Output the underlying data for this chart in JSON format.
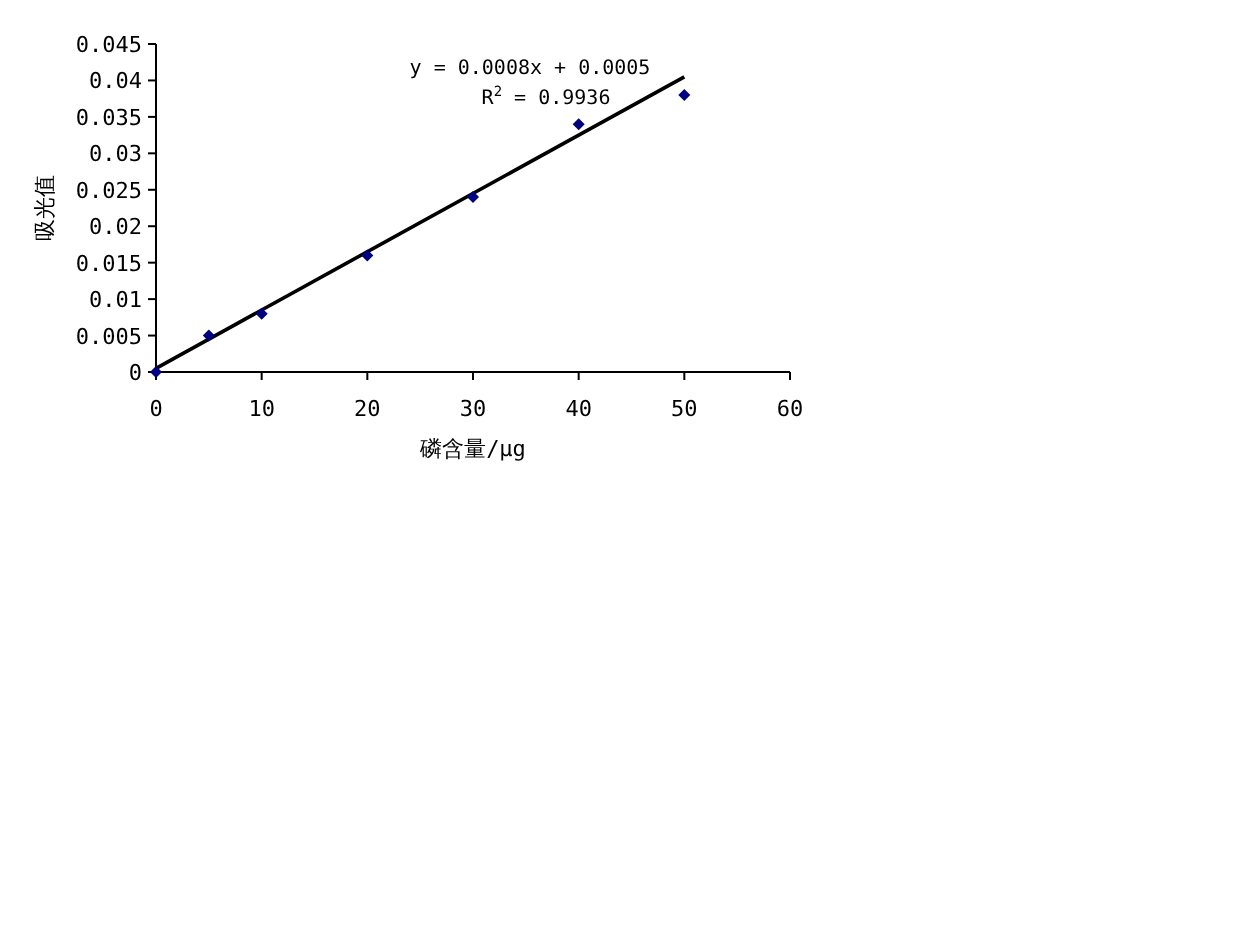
{
  "chart_data": {
    "type": "scatter",
    "xlabel": "磷含量/μg",
    "ylabel": "吸光值",
    "xlim": [
      0,
      60
    ],
    "ylim": [
      0,
      0.045
    ],
    "xticks": [
      0,
      10,
      20,
      30,
      40,
      50,
      60
    ],
    "yticks": [
      0,
      0.005,
      0.01,
      0.015,
      0.02,
      0.025,
      0.03,
      0.035,
      0.04,
      0.045
    ],
    "marker": "diamond",
    "series": [
      {
        "type": "scatter",
        "color": "#000080",
        "x": [
          0,
          5,
          10,
          20,
          30,
          40,
          50
        ],
        "values": [
          0,
          0.005,
          0.008,
          0.016,
          0.024,
          0.034,
          0.038
        ]
      },
      {
        "type": "line",
        "color": "#000000",
        "marker": "none",
        "line_style": "solid",
        "x": [
          0,
          50
        ],
        "values": [
          0.0005,
          0.0405
        ]
      }
    ],
    "annotations": [
      "y = 0.0008x + 0.0005",
      "R$^{2}$ = 0.9936"
    ]
  }
}
